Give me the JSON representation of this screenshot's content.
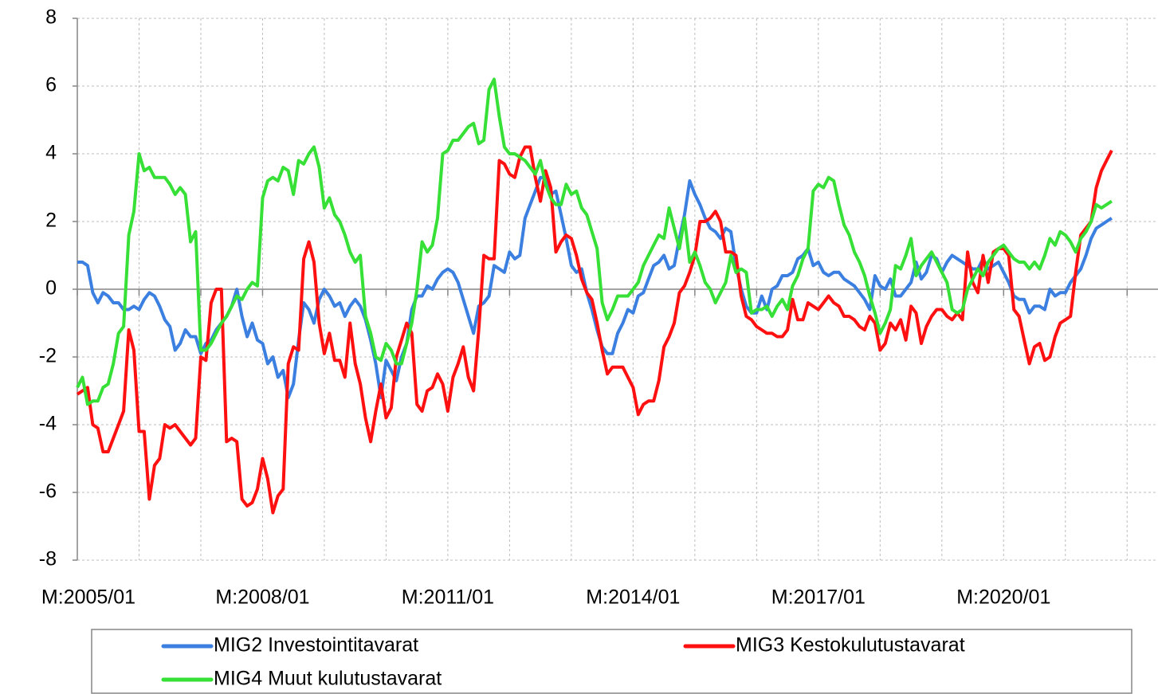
{
  "chart_data": {
    "type": "line",
    "categories": [
      "M:2005/01",
      null,
      null,
      null,
      null,
      null,
      null,
      null,
      null,
      null,
      null,
      null,
      null,
      null,
      null,
      null,
      null,
      null,
      null,
      null,
      null,
      null,
      null,
      null,
      null,
      null,
      null,
      null,
      null,
      null,
      null,
      null,
      null,
      null,
      null,
      null,
      "M:2008/01",
      null,
      null,
      null,
      null,
      null,
      null,
      null,
      null,
      null,
      null,
      null,
      null,
      null,
      null,
      null,
      null,
      null,
      null,
      null,
      null,
      null,
      null,
      null,
      null,
      null,
      null,
      null,
      null,
      null,
      null,
      null,
      null,
      null,
      null,
      null,
      "M:2011/01",
      null,
      null,
      null,
      null,
      null,
      null,
      null,
      null,
      null,
      null,
      null,
      null,
      null,
      null,
      null,
      null,
      null,
      null,
      null,
      null,
      null,
      null,
      null,
      null,
      null,
      null,
      null,
      null,
      null,
      null,
      null,
      null,
      null,
      null,
      null,
      "M:2014/01",
      null,
      null,
      null,
      null,
      null,
      null,
      null,
      null,
      null,
      null,
      null,
      null,
      null,
      null,
      null,
      null,
      null,
      null,
      null,
      null,
      null,
      null,
      null,
      null,
      null,
      null,
      null,
      null,
      null,
      null,
      null,
      null,
      null,
      null,
      null,
      "M:2017/01",
      null,
      null,
      null,
      null,
      null,
      null,
      null,
      null,
      null,
      null,
      null,
      null,
      null,
      null,
      null,
      null,
      null,
      null,
      null,
      null,
      null,
      null,
      null,
      null,
      null,
      null,
      null,
      null,
      null,
      null,
      null,
      null,
      null,
      null,
      null,
      "M:2020/01",
      null,
      null,
      null,
      null,
      null,
      null,
      null,
      null,
      null,
      null,
      null,
      null,
      null,
      null,
      null,
      null,
      null,
      null,
      null,
      null,
      null
    ],
    "series": [
      {
        "name": "MIG2 Investointitavarat",
        "color": "#3b7fe0",
        "values": [
          0.8,
          0.8,
          0.7,
          -0.1,
          -0.4,
          -0.1,
          -0.2,
          -0.4,
          -0.4,
          -0.6,
          -0.6,
          -0.5,
          -0.6,
          -0.3,
          -0.1,
          -0.2,
          -0.5,
          -0.9,
          -1.1,
          -1.8,
          -1.6,
          -1.2,
          -1.4,
          -1.4,
          -1.9,
          -1.6,
          -1.5,
          -1.2,
          -1.0,
          -0.8,
          -0.5,
          0.0,
          -0.8,
          -1.4,
          -1.0,
          -1.5,
          -1.6,
          -2.2,
          -2.0,
          -2.6,
          -2.4,
          -3.2,
          -2.8,
          -1.5,
          -0.4,
          -0.6,
          -1.0,
          -0.3,
          0.0,
          -0.2,
          -0.5,
          -0.4,
          -0.8,
          -0.5,
          -0.3,
          -0.5,
          -0.9,
          -1.5,
          -2.2,
          -3.2,
          -2.1,
          -2.4,
          -2.7,
          -2.0,
          -1.6,
          -0.6,
          -0.2,
          -0.2,
          0.1,
          0.0,
          0.3,
          0.5,
          0.6,
          0.5,
          0.2,
          -0.3,
          -0.8,
          -1.3,
          -0.5,
          -0.4,
          -0.2,
          0.7,
          0.6,
          0.5,
          1.1,
          0.9,
          1.0,
          2.1,
          2.5,
          2.9,
          3.3,
          3.3,
          2.8,
          2.9,
          2.2,
          1.5,
          0.7,
          0.5,
          0.6,
          -0.1,
          -0.6,
          -1.2,
          -1.7,
          -1.9,
          -1.9,
          -1.3,
          -1.0,
          -0.6,
          -0.7,
          -0.2,
          -0.1,
          0.3,
          0.7,
          0.8,
          1.0,
          0.6,
          0.7,
          1.5,
          2.2,
          3.2,
          2.8,
          2.5,
          2.1,
          1.8,
          1.7,
          1.5,
          1.8,
          1.7,
          0.7,
          0.0,
          -0.5,
          -0.7,
          -0.7,
          -0.2,
          -0.6,
          0.0,
          0.1,
          0.4,
          0.4,
          0.5,
          0.9,
          1.0,
          1.2,
          0.7,
          0.8,
          0.5,
          0.4,
          0.5,
          0.5,
          0.3,
          0.2,
          0.1,
          -0.1,
          -0.3,
          -0.6,
          0.4,
          0.1,
          0.0,
          0.3,
          -0.2,
          -0.2,
          0.0,
          0.2,
          0.8,
          0.3,
          0.5,
          1.0,
          0.9,
          0.5,
          0.8,
          1.0,
          0.9,
          0.8,
          0.7,
          0.6,
          0.6,
          0.9,
          0.6,
          0.7,
          0.8,
          0.5,
          0.2,
          -0.2,
          -0.3,
          -0.3,
          -0.7,
          -0.5,
          -0.5,
          -0.6,
          0.0,
          -0.2,
          -0.1,
          -0.1,
          0.2,
          0.4,
          0.6,
          1.0,
          1.5,
          1.8,
          1.9,
          2.0,
          2.1
        ]
      },
      {
        "name": "MIG3 Kestokulutustavarat",
        "color": "#ff1010",
        "values": [
          -3.1,
          -3.0,
          -2.9,
          -4.0,
          -4.1,
          -4.8,
          -4.8,
          -4.4,
          -4.0,
          -3.6,
          -1.2,
          -1.8,
          -4.2,
          -4.2,
          -6.2,
          -5.2,
          -5.0,
          -4.0,
          -4.1,
          -4.0,
          -4.2,
          -4.4,
          -4.6,
          -4.4,
          -2.0,
          -2.1,
          -0.4,
          0.0,
          0.0,
          -4.5,
          -4.4,
          -4.5,
          -6.2,
          -6.4,
          -6.3,
          -5.9,
          -5.0,
          -5.6,
          -6.6,
          -6.1,
          -5.9,
          -2.2,
          -1.7,
          -1.8,
          0.9,
          1.4,
          0.8,
          -1.0,
          -1.9,
          -1.3,
          -2.1,
          -2.1,
          -2.6,
          -1.0,
          -2.2,
          -2.8,
          -3.8,
          -4.5,
          -3.6,
          -2.8,
          -3.8,
          -3.5,
          -2.0,
          -1.5,
          -1.0,
          -1.3,
          -3.4,
          -3.6,
          -3.0,
          -2.9,
          -2.5,
          -2.8,
          -3.6,
          -2.6,
          -2.2,
          -1.7,
          -2.6,
          -3.0,
          -1.2,
          1.0,
          0.9,
          0.9,
          3.8,
          3.7,
          3.4,
          3.3,
          3.9,
          4.2,
          4.2,
          3.3,
          2.6,
          3.5,
          3.0,
          1.1,
          1.4,
          1.6,
          1.5,
          1.0,
          0.3,
          -0.1,
          -0.3,
          -1.0,
          -1.8,
          -2.5,
          -2.3,
          -2.3,
          -2.3,
          -2.6,
          -2.9,
          -3.7,
          -3.4,
          -3.3,
          -3.3,
          -2.7,
          -1.7,
          -1.4,
          -1.0,
          -0.1,
          0.1,
          0.5,
          1.0,
          2.0,
          2.0,
          2.1,
          2.3,
          2.0,
          1.1,
          1.1,
          1.0,
          -0.2,
          -0.8,
          -0.9,
          -1.1,
          -1.2,
          -1.3,
          -1.3,
          -1.4,
          -1.4,
          -1.2,
          -0.3,
          -0.9,
          -0.9,
          -0.4,
          -0.5,
          -0.6,
          -0.4,
          -0.2,
          -0.4,
          -0.5,
          -0.8,
          -0.8,
          -0.9,
          -1.1,
          -1.2,
          -0.8,
          -1.0,
          -1.8,
          -1.6,
          -1.0,
          -1.2,
          -0.9,
          -1.5,
          -0.5,
          -0.7,
          -1.6,
          -1.1,
          -0.8,
          -0.6,
          -0.6,
          -0.8,
          -0.9,
          -0.7,
          -0.9,
          1.1,
          0.2,
          -0.1,
          1.0,
          0.2,
          1.1,
          1.2,
          1.2,
          1.0,
          -0.6,
          -0.8,
          -1.5,
          -2.2,
          -1.7,
          -1.6,
          -2.1,
          -2.0,
          -1.4,
          -1.0,
          -0.9,
          -0.8,
          0.5,
          1.6,
          1.8,
          2.0,
          3.0,
          3.5,
          3.8,
          4.1
        ]
      },
      {
        "name": "MIG4 Muut kulutustavarat",
        "color": "#36e036",
        "values": [
          -2.9,
          -2.6,
          -3.4,
          -3.3,
          -3.3,
          -2.9,
          -2.8,
          -2.2,
          -1.3,
          -1.1,
          1.6,
          2.3,
          4.0,
          3.5,
          3.6,
          3.3,
          3.3,
          3.3,
          3.1,
          2.8,
          3.0,
          2.8,
          1.4,
          1.7,
          -1.8,
          -1.8,
          -1.6,
          -1.3,
          -1.0,
          -0.8,
          -0.5,
          -0.2,
          -0.3,
          0.0,
          0.2,
          0.1,
          2.7,
          3.2,
          3.3,
          3.2,
          3.6,
          3.5,
          2.8,
          3.8,
          3.7,
          4.0,
          4.2,
          3.6,
          2.4,
          2.7,
          2.2,
          2.0,
          1.6,
          1.1,
          0.8,
          1.0,
          -0.8,
          -1.3,
          -2.0,
          -2.1,
          -1.6,
          -1.8,
          -2.2,
          -2.2,
          -1.6,
          -1.0,
          0.0,
          1.4,
          1.1,
          1.3,
          2.1,
          4.0,
          4.1,
          4.4,
          4.4,
          4.6,
          4.8,
          4.9,
          4.3,
          4.4,
          5.9,
          6.2,
          5.1,
          4.2,
          4.0,
          4.0,
          3.9,
          3.8,
          3.6,
          3.4,
          3.8,
          3.1,
          2.7,
          2.5,
          2.5,
          3.1,
          2.8,
          2.9,
          2.4,
          2.2,
          1.7,
          1.2,
          -0.4,
          -0.9,
          -0.6,
          -0.2,
          -0.2,
          -0.2,
          0.0,
          0.2,
          0.7,
          1.0,
          1.3,
          1.6,
          1.5,
          2.4,
          1.8,
          1.2,
          2.1,
          0.8,
          1.1,
          0.7,
          0.2,
          0.0,
          -0.4,
          -0.1,
          0.2,
          1.0,
          0.5,
          0.6,
          0.5,
          -0.7,
          -0.6,
          -0.6,
          -0.5,
          -0.8,
          -0.5,
          -0.3,
          -0.6,
          0.1,
          0.4,
          0.9,
          1.2,
          2.9,
          3.1,
          3.0,
          3.3,
          3.2,
          2.5,
          1.9,
          1.6,
          1.1,
          0.8,
          0.4,
          -0.2,
          -0.7,
          -1.3,
          -1.0,
          -0.6,
          0.7,
          0.6,
          1.0,
          1.5,
          0.4,
          0.7,
          0.9,
          1.1,
          0.8,
          0.5,
          0.2,
          -0.6,
          -0.7,
          -0.6,
          0.0,
          0.3,
          0.6,
          0.4,
          0.8,
          1.0,
          1.2,
          1.3,
          1.1,
          0.9,
          0.8,
          0.8,
          0.6,
          0.8,
          0.6,
          1.0,
          1.5,
          1.3,
          1.7,
          1.6,
          1.4,
          1.1,
          1.5,
          1.7,
          2.0,
          2.5,
          2.4,
          2.5,
          2.6
        ]
      }
    ],
    "ylim": [
      -8,
      8
    ],
    "yticks": [
      -8,
      -6,
      -4,
      -2,
      0,
      2,
      4,
      6,
      8
    ],
    "grid": true,
    "legend": "bottom"
  }
}
